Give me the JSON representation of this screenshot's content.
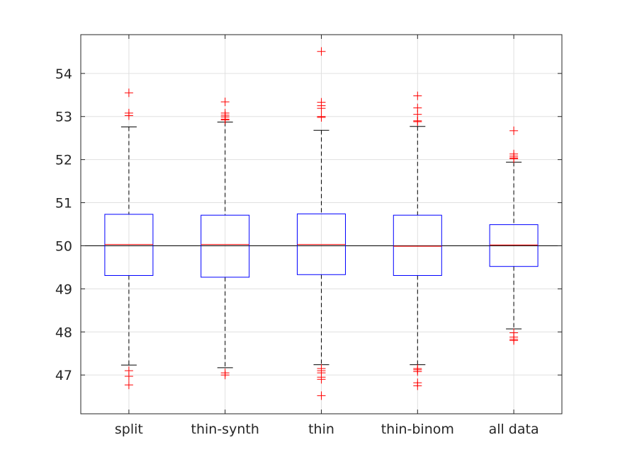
{
  "chart_data": {
    "type": "boxplot",
    "title": "",
    "xlabel": "",
    "ylabel": "",
    "ylim": [
      46.1,
      54.9
    ],
    "yticks": [
      47,
      48,
      49,
      50,
      51,
      52,
      53,
      54
    ],
    "grid": true,
    "reference_line": 50,
    "colors": {
      "box": "#0000ff",
      "median": "#ff0000",
      "whisker": "#000000",
      "outlier": "#ff0000",
      "reference": "#000000",
      "grid": "#e0e0e0"
    },
    "categories": [
      "split",
      "thin-synth",
      "thin",
      "thin-binom",
      "all data"
    ],
    "boxes": [
      {
        "category": "split",
        "whisker_low": 47.23,
        "q1": 49.31,
        "median": 50.03,
        "q3": 50.73,
        "whisker_high": 52.76,
        "outliers": [
          53.55,
          53.08,
          53.02,
          47.1,
          46.97,
          46.77
        ]
      },
      {
        "category": "thin-synth",
        "whisker_low": 47.17,
        "q1": 49.27,
        "median": 50.03,
        "q3": 50.71,
        "whisker_high": 52.87,
        "outliers": [
          53.34,
          53.08,
          53.03,
          52.99,
          52.94,
          52.92,
          47.05,
          47.0
        ]
      },
      {
        "category": "thin",
        "whisker_low": 47.24,
        "q1": 49.33,
        "median": 50.03,
        "q3": 50.74,
        "whisker_high": 52.68,
        "outliers": [
          54.51,
          53.33,
          53.25,
          53.19,
          53.0,
          52.98,
          47.15,
          47.1,
          47.05,
          46.95,
          46.9,
          46.52
        ]
      },
      {
        "category": "thin-binom",
        "whisker_low": 47.24,
        "q1": 49.31,
        "median": 49.99,
        "q3": 50.71,
        "whisker_high": 52.77,
        "outliers": [
          53.48,
          53.2,
          53.05,
          52.9,
          52.88,
          47.15,
          47.12,
          47.08,
          46.82,
          46.75
        ]
      },
      {
        "category": "all data",
        "whisker_low": 48.07,
        "q1": 49.52,
        "median": 50.02,
        "q3": 50.49,
        "whisker_high": 51.94,
        "outliers": [
          52.67,
          52.13,
          52.08,
          52.04,
          52.02,
          47.98,
          47.88,
          47.83,
          47.8
        ]
      }
    ]
  }
}
